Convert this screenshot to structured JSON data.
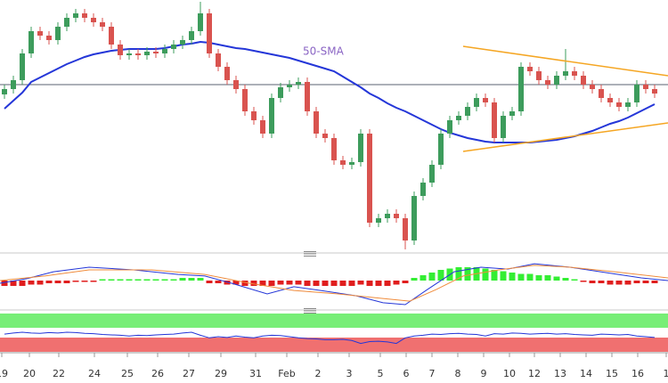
{
  "chart_data": [
    {
      "type": "candlestick",
      "xlim": [
        -0.5,
        74.5
      ],
      "ylim": [
        0,
        141
      ],
      "up_color": "#3d9c5c",
      "down_color": "#d9534f",
      "candles": {
        "open": [
          88,
          91,
          96,
          111,
          123.5,
          121,
          118.5,
          126,
          131,
          133.5,
          131,
          128.5,
          126,
          116,
          110,
          111,
          110,
          112,
          111,
          113.5,
          116,
          118.5,
          123.5,
          133.5,
          111,
          103.5,
          96,
          91,
          78.5,
          73.5,
          66,
          86,
          92,
          93.5,
          95,
          78.5,
          66,
          63.5,
          51,
          48.5,
          50,
          66,
          16,
          18.5,
          21,
          18.5,
          6,
          31,
          38.5,
          48.5,
          66,
          73.5,
          76,
          81,
          86,
          83.5,
          63.5,
          76,
          78.5,
          103.5,
          101,
          96,
          93.5,
          98.5,
          101,
          98.5,
          93.5,
          91,
          86,
          83.5,
          81,
          83.5,
          93.5,
          91
        ],
        "high": [
          93.5,
          98.5,
          113.5,
          126,
          126,
          123.5,
          128.5,
          133.5,
          136,
          136,
          133.5,
          131,
          128.5,
          118.5,
          113.5,
          113.5,
          114.5,
          114.5,
          116,
          118.5,
          121,
          126,
          140,
          136,
          113.5,
          106,
          98.5,
          93.5,
          81,
          76,
          88.5,
          94.5,
          96,
          97.5,
          97.5,
          81,
          68.5,
          66,
          53.5,
          52.5,
          68.5,
          68.5,
          21,
          23.5,
          23.5,
          21,
          33.5,
          41,
          51,
          68.5,
          76,
          78.5,
          83.5,
          88.5,
          88.5,
          86,
          78.5,
          81,
          106,
          106,
          103.5,
          98.5,
          101,
          113.5,
          103.5,
          101,
          96,
          93.5,
          88.5,
          86,
          86,
          96,
          96,
          93.5
        ],
        "low": [
          85.5,
          88.5,
          93.5,
          108.5,
          118.5,
          116,
          116,
          123.5,
          128.5,
          128.5,
          126,
          123.5,
          113.5,
          107.5,
          107.5,
          107.5,
          107.5,
          108.5,
          108.5,
          111,
          113.5,
          116,
          121,
          108.5,
          101,
          93.5,
          88.5,
          76,
          71,
          63.5,
          63.5,
          83.5,
          89.5,
          91,
          76,
          63.5,
          61,
          48.5,
          46,
          46,
          47.5,
          13.5,
          13.5,
          16,
          16,
          1,
          3.5,
          28.5,
          36,
          46,
          63.5,
          71,
          73.5,
          78.5,
          81,
          61,
          61,
          73.5,
          76,
          98.5,
          93.5,
          91,
          91,
          96,
          96,
          91,
          88.5,
          83.5,
          81,
          78.5,
          78.5,
          81,
          88.5,
          86
        ],
        "close": [
          91,
          96,
          111,
          123.5,
          121,
          118.5,
          126,
          131,
          133.5,
          131,
          128.5,
          126,
          116,
          110,
          111,
          110,
          112,
          111,
          113.5,
          116,
          118.5,
          123.5,
          133.5,
          111,
          103.5,
          96,
          91,
          78.5,
          73.5,
          66,
          86,
          92,
          93.5,
          95,
          78.5,
          66,
          63.5,
          51,
          48.5,
          50,
          66,
          16,
          18.5,
          21,
          18.5,
          6,
          31,
          38.5,
          48.5,
          66,
          73.5,
          76,
          81,
          86,
          83.5,
          63.5,
          76,
          78.5,
          103.5,
          101,
          96,
          93.5,
          98.5,
          101,
          98.5,
          93.5,
          91,
          86,
          83.5,
          81,
          83.5,
          93.5,
          91,
          88.5
        ]
      },
      "series": [
        {
          "name": "50-SMA",
          "color": "#2436d8",
          "label_color": "#8a64c4",
          "values": [
            80,
            84.5,
            89,
            95,
            97.5,
            100,
            102.5,
            105,
            107,
            109,
            110.5,
            111.5,
            112.5,
            113,
            113.5,
            113.5,
            113.5,
            113.5,
            114,
            115,
            116,
            116.5,
            117.5,
            117,
            116,
            115,
            114,
            113.5,
            112.5,
            111.5,
            110.5,
            109.5,
            108.5,
            107,
            105.5,
            104,
            102.5,
            101,
            98,
            95,
            92,
            88.5,
            86,
            83,
            80.5,
            78.5,
            76,
            73.5,
            71,
            68.5,
            66.5,
            65,
            63.5,
            62.5,
            61.5,
            61,
            61,
            61,
            61,
            61,
            61.5,
            62,
            62.5,
            63.5,
            64.5,
            66,
            67.5,
            69.5,
            71.5,
            73,
            75,
            77.5,
            80,
            82.5
          ]
        }
      ],
      "reference_line": 93.5,
      "trend_lines": [
        {
          "color": "#f5a623",
          "x": [
            51.5,
            74.5
          ],
          "y": [
            115,
            98.5
          ]
        },
        {
          "color": "#f5a623",
          "x": [
            51.5,
            74.5
          ],
          "y": [
            56,
            72
          ]
        }
      ],
      "xticks": [
        {
          "value": -0.3,
          "label": "19"
        },
        {
          "value": 2.8,
          "label": "20"
        },
        {
          "value": 6.1,
          "label": "22"
        },
        {
          "value": 10.1,
          "label": "24"
        },
        {
          "value": 13.8,
          "label": "25"
        },
        {
          "value": 17.2,
          "label": "26"
        },
        {
          "value": 20.7,
          "label": "27"
        },
        {
          "value": 24.3,
          "label": "29"
        },
        {
          "value": 28.2,
          "label": "31"
        },
        {
          "value": 31.7,
          "label": "Feb"
        },
        {
          "value": 35.2,
          "label": "2"
        },
        {
          "value": 38.7,
          "label": "3"
        },
        {
          "value": 42.2,
          "label": "5"
        },
        {
          "value": 45.1,
          "label": "6"
        },
        {
          "value": 48,
          "label": "7"
        },
        {
          "value": 50.9,
          "label": "8"
        },
        {
          "value": 53.8,
          "label": "9"
        },
        {
          "value": 56.7,
          "label": "10"
        },
        {
          "value": 59.5,
          "label": "12"
        },
        {
          "value": 62.4,
          "label": "13"
        },
        {
          "value": 65.3,
          "label": "14"
        },
        {
          "value": 68.2,
          "label": "15"
        },
        {
          "value": 71.1,
          "label": "16"
        },
        {
          "value": 74.3,
          "label": "1"
        }
      ]
    },
    {
      "type": "macd",
      "xlim": [
        -0.5,
        74.5
      ],
      "ylim": [
        -9,
        9
      ],
      "up_color": "#33ee33",
      "down_color": "#e01e1e",
      "values": [
        -2,
        -2,
        -2,
        -1.5,
        -1.5,
        -1,
        -1,
        -1,
        -0.5,
        -0.5,
        -0.5,
        0.5,
        0.5,
        0.5,
        0.5,
        0.5,
        0.5,
        0.5,
        0.5,
        0.5,
        1,
        1,
        1,
        -1,
        -1,
        -1.5,
        -1.5,
        -2,
        -2,
        -2,
        -2,
        -1.5,
        -1.5,
        -1.5,
        -2,
        -2,
        -2,
        -2,
        -2,
        -2,
        -1.5,
        -2,
        -2,
        -2,
        -1.5,
        -1,
        1,
        2,
        3,
        4,
        4.5,
        5,
        5,
        5,
        4.5,
        4,
        3.5,
        3,
        2.5,
        2.5,
        2,
        2,
        1.5,
        1,
        0.5,
        -0.5,
        -1,
        -1,
        -1.5,
        -1.5,
        -1.5,
        -1,
        -1,
        -1
      ],
      "lines": [
        {
          "color": "#2436d8",
          "x": [
            -0.5,
            2.5,
            5.5,
            9.5,
            14.5,
            19.5,
            22.5,
            25.5,
            29.5,
            32.5,
            35.5,
            39.5,
            42.5,
            45,
            47.5,
            50.5,
            53.5,
            56.5,
            59.5,
            63.5,
            67.5,
            71.5,
            74.5
          ],
          "y": [
            -1,
            0.7,
            3.3,
            5,
            4,
            2.3,
            1.7,
            -1,
            -5,
            -2.3,
            -3.7,
            -5.7,
            -8.3,
            -9,
            -3.3,
            3.3,
            5,
            4.3,
            6.3,
            5,
            3,
            1,
            0
          ]
        },
        {
          "color": "#f08c3c",
          "x": [
            -0.5,
            4.5,
            9.5,
            16.5,
            22.5,
            27.5,
            32.5,
            37.5,
            42.5,
            45.5,
            48.5,
            51.5,
            55.5,
            59.5,
            63.5,
            68.5,
            74.5
          ],
          "y": [
            0,
            1.7,
            4,
            4,
            2.3,
            -1,
            -3.7,
            -5,
            -6.7,
            -7.7,
            -3.3,
            1.7,
            4,
            5.7,
            5,
            3.3,
            1
          ]
        }
      ]
    },
    {
      "type": "line",
      "xlim": [
        -0.5,
        74.5
      ],
      "ylim": [
        0,
        100
      ],
      "series": [
        {
          "color": "#2436d8",
          "values": [
            45,
            48,
            50,
            48,
            47,
            49,
            48,
            50,
            49,
            47,
            46,
            44,
            43,
            42,
            40,
            42,
            41,
            43,
            44,
            45,
            48,
            50,
            42,
            35,
            38,
            36,
            40,
            37,
            35,
            40,
            42,
            41,
            38,
            35,
            33,
            32,
            30,
            30,
            31,
            28,
            20,
            25,
            26,
            24,
            20,
            35,
            40,
            42,
            45,
            44,
            46,
            47,
            45,
            44,
            40,
            46,
            45,
            48,
            47,
            45,
            46,
            47,
            45,
            46,
            44,
            43,
            42,
            45,
            44,
            43,
            44,
            40,
            38,
            36
          ]
        }
      ]
    }
  ]
}
